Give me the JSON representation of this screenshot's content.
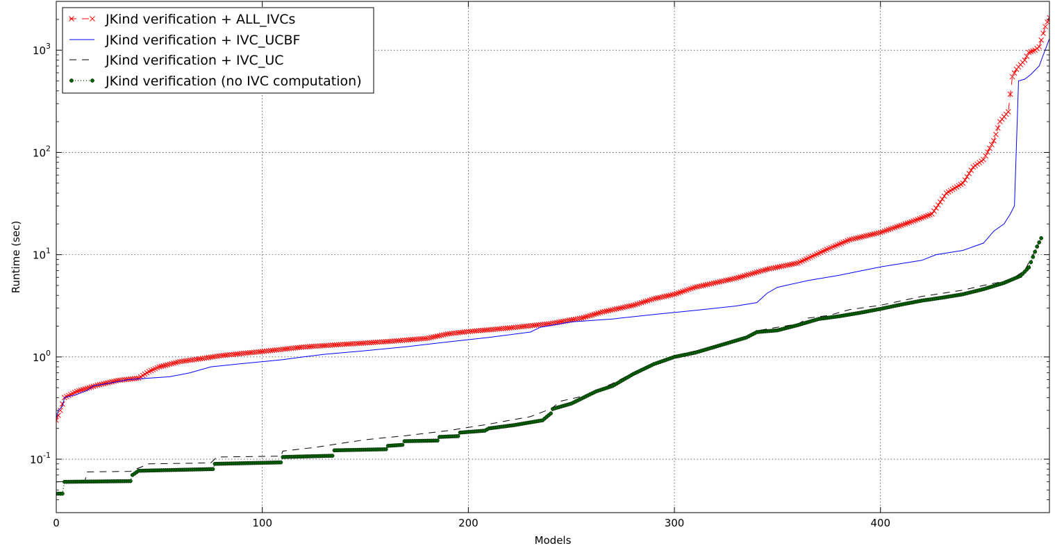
{
  "chart_data": {
    "type": "line",
    "title": "",
    "xlabel": "Models",
    "ylabel": "Runtime (sec)",
    "xlim": [
      0,
      482
    ],
    "ylim": [
      0.03,
      3000
    ],
    "yscale": "log",
    "grid": true,
    "legend_position": "top-left",
    "x_ticks": [
      "0",
      "100",
      "200",
      "300",
      "400"
    ],
    "y_ticks": [
      {
        "base": "10",
        "exp": "-1"
      },
      {
        "base": "10",
        "exp": "0"
      },
      {
        "base": "10",
        "exp": "1"
      },
      {
        "base": "10",
        "exp": "2"
      },
      {
        "base": "10",
        "exp": "3"
      }
    ],
    "series": [
      {
        "name": "JKind verification + ALL_IVCs",
        "color": "#ff0000",
        "style": "dashed",
        "marker": "x",
        "points": [
          [
            0,
            0.24
          ],
          [
            2,
            0.3
          ],
          [
            4,
            0.4
          ],
          [
            10,
            0.46
          ],
          [
            20,
            0.53
          ],
          [
            30,
            0.59
          ],
          [
            40,
            0.62
          ],
          [
            45,
            0.72
          ],
          [
            50,
            0.8
          ],
          [
            60,
            0.9
          ],
          [
            70,
            0.96
          ],
          [
            80,
            1.03
          ],
          [
            90,
            1.08
          ],
          [
            100,
            1.13
          ],
          [
            120,
            1.25
          ],
          [
            140,
            1.33
          ],
          [
            160,
            1.41
          ],
          [
            180,
            1.52
          ],
          [
            190,
            1.68
          ],
          [
            200,
            1.77
          ],
          [
            220,
            1.92
          ],
          [
            240,
            2.12
          ],
          [
            255,
            2.4
          ],
          [
            265,
            2.75
          ],
          [
            280,
            3.2
          ],
          [
            290,
            3.7
          ],
          [
            300,
            4.1
          ],
          [
            310,
            4.8
          ],
          [
            330,
            5.9
          ],
          [
            345,
            7.2
          ],
          [
            360,
            8.3
          ],
          [
            375,
            11.5
          ],
          [
            385,
            14.0
          ],
          [
            400,
            16.5
          ],
          [
            415,
            21.0
          ],
          [
            425,
            25.0
          ],
          [
            432,
            40.0
          ],
          [
            440,
            50.0
          ],
          [
            445,
            72.0
          ],
          [
            450,
            85.0
          ],
          [
            455,
            130.0
          ],
          [
            458,
            200.0
          ],
          [
            462,
            250.0
          ],
          [
            464,
            550.0
          ],
          [
            466,
            650.0
          ],
          [
            470,
            800.0
          ],
          [
            472,
            950.0
          ],
          [
            475,
            1000.0
          ],
          [
            477,
            1080.0
          ],
          [
            480,
            1700.0
          ],
          [
            483,
            2300.0
          ]
        ]
      },
      {
        "name": "JKind verification + IVC_UCBF",
        "color": "#0000ff",
        "style": "solid",
        "marker": "none",
        "points": [
          [
            0,
            0.25
          ],
          [
            1,
            0.3
          ],
          [
            3,
            0.33
          ],
          [
            4,
            0.4
          ],
          [
            10,
            0.43
          ],
          [
            15,
            0.47
          ],
          [
            18,
            0.52
          ],
          [
            25,
            0.55
          ],
          [
            35,
            0.6
          ],
          [
            45,
            0.62
          ],
          [
            55,
            0.64
          ],
          [
            65,
            0.7
          ],
          [
            75,
            0.8
          ],
          [
            90,
            0.86
          ],
          [
            110,
            0.94
          ],
          [
            120,
            1.0
          ],
          [
            130,
            1.06
          ],
          [
            150,
            1.15
          ],
          [
            170,
            1.26
          ],
          [
            190,
            1.4
          ],
          [
            210,
            1.55
          ],
          [
            230,
            1.75
          ],
          [
            235,
            1.95
          ],
          [
            250,
            2.2
          ],
          [
            270,
            2.35
          ],
          [
            290,
            2.6
          ],
          [
            310,
            2.85
          ],
          [
            330,
            3.15
          ],
          [
            340,
            3.4
          ],
          [
            345,
            4.2
          ],
          [
            350,
            4.8
          ],
          [
            365,
            5.6
          ],
          [
            380,
            6.3
          ],
          [
            400,
            7.6
          ],
          [
            420,
            8.8
          ],
          [
            427,
            10.0
          ],
          [
            440,
            11.0
          ],
          [
            450,
            13.0
          ],
          [
            455,
            17.0
          ],
          [
            460,
            20.0
          ],
          [
            463,
            25.0
          ],
          [
            465,
            30.0
          ],
          [
            467,
            500.0
          ],
          [
            470,
            520.0
          ],
          [
            473,
            580.0
          ],
          [
            477,
            700.0
          ],
          [
            482,
            1300.0
          ]
        ]
      },
      {
        "name": "JKind verification + IVC_UC",
        "color": "#000000",
        "style": "dashed",
        "marker": "none",
        "points": [
          [
            0,
            0.06
          ],
          [
            14,
            0.062
          ],
          [
            15,
            0.075
          ],
          [
            36,
            0.076
          ],
          [
            45,
            0.09
          ],
          [
            75,
            0.092
          ],
          [
            78,
            0.105
          ],
          [
            109,
            0.107
          ],
          [
            110,
            0.12
          ],
          [
            125,
            0.13
          ],
          [
            150,
            0.155
          ],
          [
            170,
            0.17
          ],
          [
            190,
            0.19
          ],
          [
            210,
            0.22
          ],
          [
            220,
            0.24
          ],
          [
            230,
            0.26
          ],
          [
            240,
            0.31
          ],
          [
            245,
            0.37
          ],
          [
            255,
            0.41
          ],
          [
            260,
            0.45
          ],
          [
            270,
            0.55
          ],
          [
            280,
            0.7
          ],
          [
            290,
            0.86
          ],
          [
            300,
            1.02
          ],
          [
            320,
            1.28
          ],
          [
            335,
            1.55
          ],
          [
            340,
            1.8
          ],
          [
            350,
            1.95
          ],
          [
            360,
            2.1
          ],
          [
            365,
            2.4
          ],
          [
            375,
            2.55
          ],
          [
            385,
            2.9
          ],
          [
            400,
            3.2
          ],
          [
            420,
            3.9
          ],
          [
            440,
            4.5
          ],
          [
            450,
            5.0
          ],
          [
            460,
            5.5
          ],
          [
            465,
            6.0
          ],
          [
            470,
            7.0
          ],
          [
            474,
            10.0
          ],
          [
            478,
            14.5
          ]
        ]
      },
      {
        "name": "JKind verification (no IVC computation)",
        "color": "#006400",
        "style": "dotted",
        "marker": "circle",
        "points": [
          [
            0,
            0.046
          ],
          [
            3,
            0.046
          ],
          [
            4,
            0.06
          ],
          [
            36,
            0.061
          ],
          [
            37,
            0.07
          ],
          [
            40,
            0.077
          ],
          [
            76,
            0.08
          ],
          [
            77,
            0.09
          ],
          [
            109,
            0.093
          ],
          [
            110,
            0.105
          ],
          [
            134,
            0.108
          ],
          [
            135,
            0.122
          ],
          [
            160,
            0.125
          ],
          [
            161,
            0.135
          ],
          [
            168,
            0.138
          ],
          [
            169,
            0.15
          ],
          [
            185,
            0.152
          ],
          [
            186,
            0.165
          ],
          [
            195,
            0.168
          ],
          [
            196,
            0.182
          ],
          [
            208,
            0.19
          ],
          [
            210,
            0.2
          ],
          [
            222,
            0.215
          ],
          [
            236,
            0.24
          ],
          [
            240,
            0.28
          ],
          [
            241,
            0.31
          ],
          [
            250,
            0.35
          ],
          [
            262,
            0.46
          ],
          [
            270,
            0.52
          ],
          [
            280,
            0.68
          ],
          [
            290,
            0.85
          ],
          [
            300,
            1.0
          ],
          [
            310,
            1.1
          ],
          [
            325,
            1.35
          ],
          [
            335,
            1.55
          ],
          [
            340,
            1.75
          ],
          [
            350,
            1.82
          ],
          [
            360,
            2.05
          ],
          [
            370,
            2.35
          ],
          [
            380,
            2.5
          ],
          [
            390,
            2.7
          ],
          [
            400,
            2.95
          ],
          [
            410,
            3.25
          ],
          [
            420,
            3.55
          ],
          [
            430,
            3.8
          ],
          [
            440,
            4.1
          ],
          [
            450,
            4.6
          ],
          [
            460,
            5.3
          ],
          [
            468,
            6.2
          ],
          [
            472,
            7.5
          ],
          [
            474,
            9.5
          ],
          [
            476,
            12.0
          ],
          [
            478,
            14.5
          ]
        ]
      }
    ]
  }
}
